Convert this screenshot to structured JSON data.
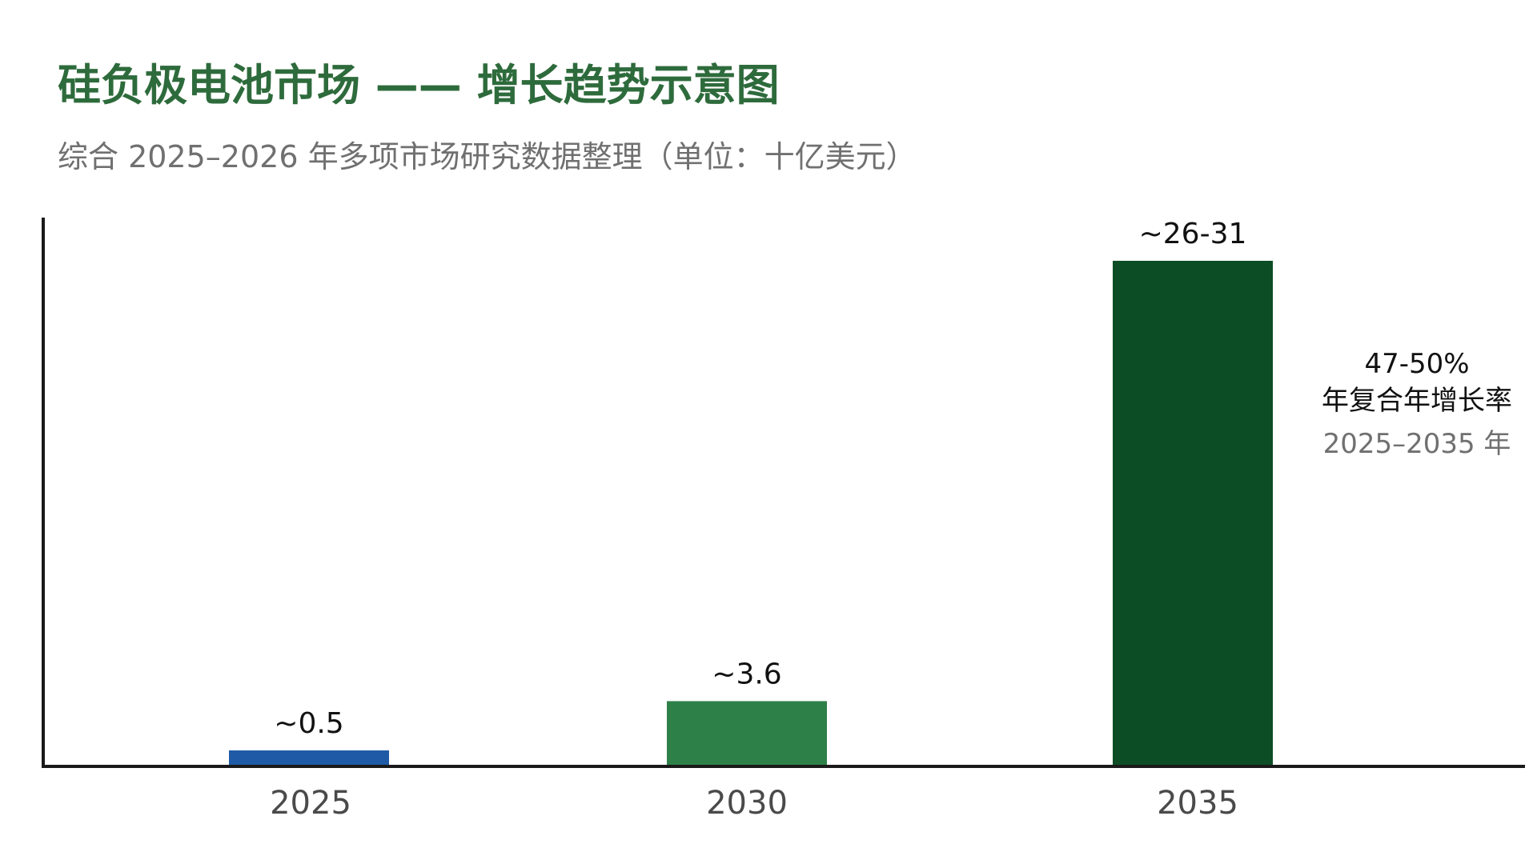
{
  "chart_data": {
    "type": "bar",
    "title": "硅负极电池市场 —— 增长趋势示意图",
    "subtitle": "综合 2025–2026 年多项市场研究数据整理（单位：十亿美元）",
    "xlabel": "",
    "ylabel": "",
    "categories": [
      "2025",
      "2030",
      "2035"
    ],
    "values": [
      0.5,
      3.6,
      28.5
    ],
    "value_labels": [
      "~0.5",
      "~3.6",
      "~26-31"
    ],
    "colors": [
      "#1f5aa6",
      "#2e8049",
      "#0d4d25"
    ],
    "ylim": [
      0,
      31
    ],
    "grid": false,
    "annotation": {
      "rate": "47-50%",
      "label": "年复合年增长率",
      "period": "2025–2035 年"
    }
  }
}
